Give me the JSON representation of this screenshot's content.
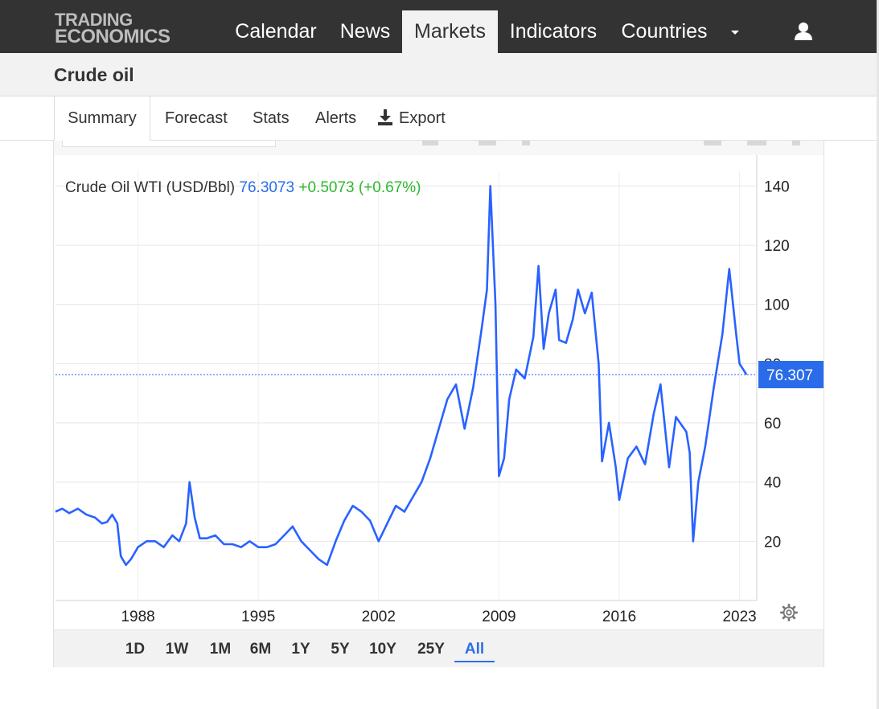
{
  "brand": {
    "line1": "TRADING",
    "line2": "ECONOMICS"
  },
  "nav": {
    "items": [
      "Calendar",
      "News",
      "Markets",
      "Indicators",
      "Countries"
    ],
    "active": "Markets"
  },
  "page": {
    "title": "Crude oil"
  },
  "tabs": {
    "items": [
      "Summary",
      "Forecast",
      "Stats",
      "Alerts",
      "Export"
    ],
    "active": "Summary"
  },
  "legend": {
    "name": "Crude Oil WTI (USD/Bbl)",
    "price": "76.3073",
    "change": "+0.5073 (+0.67%)"
  },
  "current_price_label": "76.307",
  "range": {
    "items": [
      "1D",
      "1W",
      "1M",
      "6M",
      "1Y",
      "5Y",
      "10Y",
      "25Y",
      "All"
    ],
    "active": "All"
  },
  "colors": {
    "line": "#2962ff",
    "up": "#2db82d",
    "price_tag": "#2a6bea",
    "nav_bg": "#333333"
  },
  "chart_data": {
    "type": "line",
    "title": "",
    "xlabel": "",
    "ylabel": "",
    "x_ticks": [
      "1988",
      "1995",
      "2002",
      "2009",
      "2016",
      "2023"
    ],
    "y_ticks": [
      20,
      40,
      60,
      80,
      100,
      120,
      140
    ],
    "xlim": [
      1983.2,
      2024.0
    ],
    "ylim": [
      0,
      145
    ],
    "grid": true,
    "current_value": 76.307,
    "series": [
      {
        "name": "",
        "points": [
          [
            1983.2,
            30
          ],
          [
            1983.6,
            31
          ],
          [
            1984.0,
            29.5
          ],
          [
            1984.5,
            31
          ],
          [
            1985.0,
            29
          ],
          [
            1985.5,
            28
          ],
          [
            1985.9,
            26
          ],
          [
            1986.2,
            26.5
          ],
          [
            1986.5,
            29
          ],
          [
            1986.8,
            26
          ],
          [
            1987.0,
            15
          ],
          [
            1987.3,
            12
          ],
          [
            1987.6,
            14
          ],
          [
            1988.0,
            18
          ],
          [
            1988.5,
            20
          ],
          [
            1989.0,
            20
          ],
          [
            1989.5,
            18
          ],
          [
            1990.0,
            22
          ],
          [
            1990.4,
            20
          ],
          [
            1990.8,
            26
          ],
          [
            1991.0,
            40
          ],
          [
            1991.3,
            28
          ],
          [
            1991.6,
            21
          ],
          [
            1992.0,
            21
          ],
          [
            1992.5,
            22
          ],
          [
            1993.0,
            19
          ],
          [
            1993.5,
            19
          ],
          [
            1994.0,
            18
          ],
          [
            1994.5,
            20
          ],
          [
            1995.0,
            18
          ],
          [
            1995.5,
            18
          ],
          [
            1996.0,
            19
          ],
          [
            1996.5,
            22
          ],
          [
            1997.0,
            25
          ],
          [
            1997.5,
            20
          ],
          [
            1998.0,
            17
          ],
          [
            1998.5,
            14
          ],
          [
            1999.0,
            12
          ],
          [
            1999.5,
            20
          ],
          [
            2000.0,
            27
          ],
          [
            2000.5,
            32
          ],
          [
            2001.0,
            30
          ],
          [
            2001.5,
            27
          ],
          [
            2002.0,
            20
          ],
          [
            2002.5,
            26
          ],
          [
            2003.0,
            32
          ],
          [
            2003.5,
            30
          ],
          [
            2004.0,
            35
          ],
          [
            2004.5,
            40
          ],
          [
            2005.0,
            48
          ],
          [
            2005.5,
            58
          ],
          [
            2006.0,
            68
          ],
          [
            2006.5,
            73
          ],
          [
            2007.0,
            58
          ],
          [
            2007.5,
            72
          ],
          [
            2008.0,
            92
          ],
          [
            2008.3,
            105
          ],
          [
            2008.5,
            140
          ],
          [
            2008.8,
            100
          ],
          [
            2009.0,
            42
          ],
          [
            2009.3,
            48
          ],
          [
            2009.6,
            68
          ],
          [
            2010.0,
            78
          ],
          [
            2010.5,
            75
          ],
          [
            2011.0,
            89
          ],
          [
            2011.3,
            113
          ],
          [
            2011.6,
            85
          ],
          [
            2011.9,
            97
          ],
          [
            2012.3,
            105
          ],
          [
            2012.5,
            88
          ],
          [
            2012.9,
            87
          ],
          [
            2013.3,
            95
          ],
          [
            2013.6,
            105
          ],
          [
            2014.0,
            97
          ],
          [
            2014.4,
            104
          ],
          [
            2014.8,
            80
          ],
          [
            2015.0,
            47
          ],
          [
            2015.4,
            60
          ],
          [
            2015.8,
            45
          ],
          [
            2016.0,
            34
          ],
          [
            2016.5,
            48
          ],
          [
            2017.0,
            52
          ],
          [
            2017.5,
            46
          ],
          [
            2018.0,
            63
          ],
          [
            2018.4,
            73
          ],
          [
            2018.9,
            45
          ],
          [
            2019.3,
            62
          ],
          [
            2019.9,
            57
          ],
          [
            2020.1,
            50
          ],
          [
            2020.3,
            20
          ],
          [
            2020.6,
            40
          ],
          [
            2021.0,
            52
          ],
          [
            2021.5,
            72
          ],
          [
            2022.0,
            90
          ],
          [
            2022.4,
            112
          ],
          [
            2022.8,
            90
          ],
          [
            2023.0,
            80
          ],
          [
            2023.4,
            76.3
          ]
        ]
      }
    ]
  }
}
